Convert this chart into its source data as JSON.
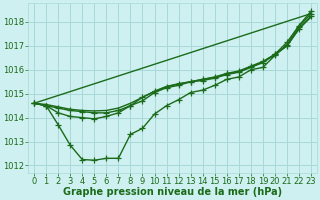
{
  "xlabel": "Graphe pression niveau de la mer (hPa)",
  "xlim": [
    -0.5,
    23.5
  ],
  "ylim": [
    1011.7,
    1018.8
  ],
  "yticks": [
    1012,
    1013,
    1014,
    1015,
    1016,
    1017,
    1018
  ],
  "xticks": [
    0,
    1,
    2,
    3,
    4,
    5,
    6,
    7,
    8,
    9,
    10,
    11,
    12,
    13,
    14,
    15,
    16,
    17,
    18,
    19,
    20,
    21,
    22,
    23
  ],
  "bg_color": "#cff0f0",
  "grid_color": "#a8d8d8",
  "line_color": "#1a6b1a",
  "lines": [
    {
      "x": [
        0,
        1,
        2,
        3,
        4,
        5,
        6,
        7,
        8,
        9,
        10,
        11,
        12,
        13,
        14,
        15,
        16,
        17,
        18,
        19,
        20,
        21,
        22,
        23
      ],
      "y": [
        1014.6,
        1014.5,
        1014.4,
        1014.3,
        1014.25,
        1014.2,
        1014.2,
        1014.3,
        1014.5,
        1014.7,
        1015.05,
        1015.25,
        1015.35,
        1015.5,
        1015.55,
        1015.65,
        1015.8,
        1015.9,
        1016.1,
        1016.3,
        1016.65,
        1017.15,
        1017.85,
        1018.45
      ],
      "marker": true
    },
    {
      "x": [
        0,
        1,
        2,
        3,
        4,
        5,
        6,
        7,
        8,
        9,
        10,
        11,
        12,
        13,
        14,
        15,
        16,
        17,
        18,
        19,
        20,
        21,
        22,
        23
      ],
      "y": [
        1014.6,
        1014.5,
        1013.7,
        1012.85,
        1012.25,
        1012.22,
        1012.3,
        1012.3,
        1013.3,
        1013.55,
        1014.15,
        1014.5,
        1014.75,
        1015.05,
        1015.15,
        1015.35,
        1015.6,
        1015.7,
        1016.0,
        1016.1,
        1016.6,
        1017.05,
        1017.8,
        1018.35
      ],
      "marker": true
    },
    {
      "x": [
        0,
        1,
        2,
        3,
        4,
        5,
        6,
        7,
        8,
        9,
        10,
        11,
        12,
        13,
        14,
        15,
        16,
        17,
        18,
        19,
        20,
        21,
        22,
        23
      ],
      "y": [
        1014.6,
        1014.5,
        1014.2,
        1014.05,
        1014.0,
        1013.95,
        1014.05,
        1014.2,
        1014.5,
        1014.85,
        1015.1,
        1015.3,
        1015.4,
        1015.5,
        1015.6,
        1015.7,
        1015.85,
        1015.95,
        1016.15,
        1016.35,
        1016.65,
        1017.0,
        1017.7,
        1018.25
      ],
      "marker": true
    },
    {
      "x": [
        0,
        23
      ],
      "y": [
        1014.6,
        1018.35
      ],
      "marker": false
    },
    {
      "x": [
        0,
        1,
        2,
        3,
        4,
        5,
        6,
        7,
        8,
        9,
        10,
        11,
        12,
        13,
        14,
        15,
        16,
        17,
        18,
        19,
        20,
        21,
        22,
        23
      ],
      "y": [
        1014.6,
        1014.55,
        1014.45,
        1014.35,
        1014.3,
        1014.28,
        1014.3,
        1014.4,
        1014.6,
        1014.85,
        1015.1,
        1015.3,
        1015.42,
        1015.5,
        1015.6,
        1015.68,
        1015.82,
        1015.92,
        1016.12,
        1016.32,
        1016.62,
        1017.0,
        1017.72,
        1018.2
      ],
      "marker": false
    }
  ],
  "marker_style": "+",
  "marker_size": 4,
  "line_width": 1.0,
  "font_color": "#1a6b1a",
  "font_size_label": 7,
  "font_size_tick": 6
}
